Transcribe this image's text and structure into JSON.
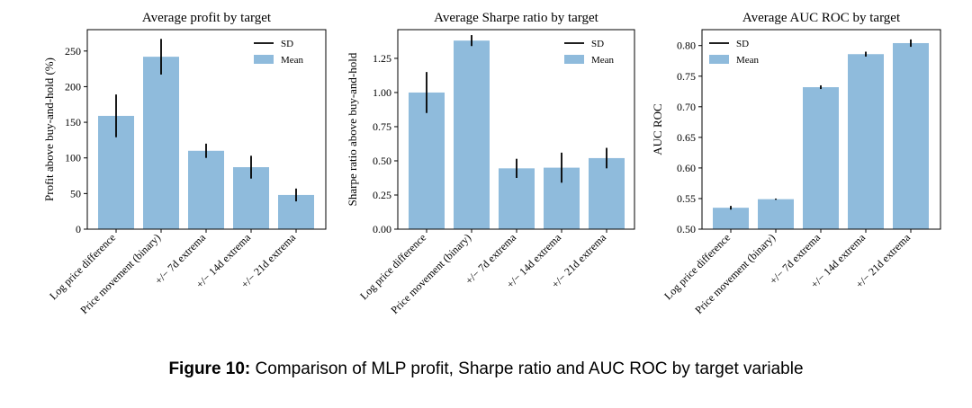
{
  "caption": {
    "label": "Figure 10:",
    "text": "Comparison of MLP profit, Sharpe ratio and AUC ROC by target variable"
  },
  "colors": {
    "bar": "#8fbbdc",
    "error": "#000000",
    "axis": "#000000"
  },
  "chart_data": [
    {
      "type": "bar",
      "title": "Average profit by target",
      "xlabel": "",
      "ylabel": "Profit above buy-and-hold (%)",
      "categories": [
        "Log price difference",
        "Price movement (binary)",
        "+/− 7d extrema",
        "+/− 14d extrema",
        "+/− 21d extrema"
      ],
      "values": [
        159,
        242,
        110,
        87,
        48
      ],
      "errors": [
        30,
        25,
        10,
        16,
        9
      ],
      "ylim": [
        0,
        280
      ],
      "yticks": [
        0,
        50,
        100,
        150,
        200,
        250
      ],
      "ytick_labels": [
        "0",
        "50",
        "100",
        "150",
        "200",
        "250"
      ],
      "legend": {
        "position": "top-right",
        "sd": "SD",
        "mean": "Mean"
      }
    },
    {
      "type": "bar",
      "title": "Average Sharpe ratio by target",
      "xlabel": "",
      "ylabel": "Sharpe ratio above buy-and-hold",
      "categories": [
        "Log price difference",
        "Price movement (binary)",
        "+/− 7d extrema",
        "+/− 14d extrema",
        "+/− 21d extrema"
      ],
      "values": [
        1.0,
        1.38,
        0.445,
        0.45,
        0.52
      ],
      "errors": [
        0.15,
        0.04,
        0.07,
        0.11,
        0.075
      ],
      "ylim": [
        0,
        1.46
      ],
      "yticks": [
        0,
        0.25,
        0.5,
        0.75,
        1.0,
        1.25
      ],
      "ytick_labels": [
        "0.00",
        "0.25",
        "0.50",
        "0.75",
        "1.00",
        "1.25"
      ],
      "legend": {
        "position": "top-right",
        "sd": "SD",
        "mean": "Mean"
      }
    },
    {
      "type": "bar",
      "title": "Average AUC ROC by target",
      "xlabel": "",
      "ylabel": "AUC ROC",
      "categories": [
        "Log price difference",
        "Price movement (binary)",
        "+/− 7d extrema",
        "+/− 14d extrema",
        "+/− 21d extrema"
      ],
      "values": [
        0.535,
        0.549,
        0.732,
        0.786,
        0.804
      ],
      "errors": [
        0.003,
        0.001,
        0.003,
        0.004,
        0.006
      ],
      "ylim": [
        0.5,
        0.826
      ],
      "yticks": [
        0.5,
        0.55,
        0.6,
        0.65,
        0.7,
        0.75,
        0.8
      ],
      "ytick_labels": [
        "0.50",
        "0.55",
        "0.60",
        "0.65",
        "0.70",
        "0.75",
        "0.80"
      ],
      "legend": {
        "position": "top-left",
        "sd": "SD",
        "mean": "Mean"
      }
    }
  ]
}
